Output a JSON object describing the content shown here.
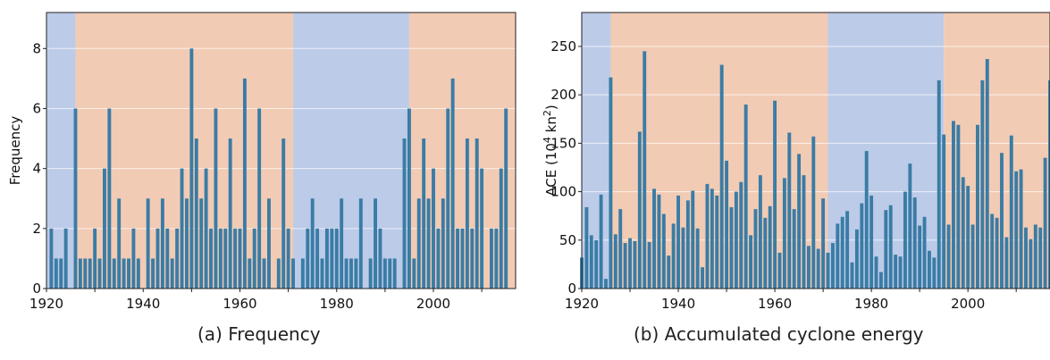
{
  "chart_data": [
    {
      "type": "bar",
      "caption": "(a) Frequency",
      "ylabel": "Frequency",
      "xlim": [
        1920,
        2017
      ],
      "ylim": [
        0,
        9.2
      ],
      "xticks": [
        1920,
        1940,
        1960,
        1980,
        2000
      ],
      "yticks": [
        0,
        2,
        4,
        6,
        8
      ],
      "grid": "y",
      "phases": [
        {
          "start": 1920,
          "end": 1926,
          "phase": "cool",
          "color": "#bccbe8"
        },
        {
          "start": 1926,
          "end": 1971,
          "phase": "warm",
          "color": "#f2cbb4"
        },
        {
          "start": 1971,
          "end": 1995,
          "phase": "cool",
          "color": "#bccbe8"
        },
        {
          "start": 1995,
          "end": 2017,
          "phase": "warm",
          "color": "#f2cbb4"
        }
      ],
      "bar_color": "#3a7ca5",
      "x": [
        1921,
        1922,
        1923,
        1924,
        1925,
        1926,
        1927,
        1928,
        1929,
        1930,
        1931,
        1932,
        1933,
        1934,
        1935,
        1936,
        1937,
        1938,
        1939,
        1940,
        1941,
        1942,
        1943,
        1944,
        1945,
        1946,
        1947,
        1948,
        1949,
        1950,
        1951,
        1952,
        1953,
        1954,
        1955,
        1956,
        1957,
        1958,
        1959,
        1960,
        1961,
        1962,
        1963,
        1964,
        1965,
        1966,
        1967,
        1968,
        1969,
        1970,
        1971,
        1972,
        1973,
        1974,
        1975,
        1976,
        1977,
        1978,
        1979,
        1980,
        1981,
        1982,
        1983,
        1984,
        1985,
        1986,
        1987,
        1988,
        1989,
        1990,
        1991,
        1992,
        1993,
        1994,
        1995,
        1996,
        1997,
        1998,
        1999,
        2000,
        2001,
        2002,
        2003,
        2004,
        2005,
        2006,
        2007,
        2008,
        2009,
        2010,
        2011,
        2012,
        2013,
        2014,
        2015,
        2016,
        2017
      ],
      "values": [
        2,
        1,
        1,
        2,
        0,
        6,
        1,
        1,
        1,
        2,
        1,
        4,
        6,
        1,
        3,
        1,
        1,
        2,
        1,
        0,
        3,
        1,
        2,
        3,
        2,
        1,
        2,
        4,
        3,
        8,
        5,
        3,
        4,
        2,
        6,
        2,
        2,
        5,
        2,
        2,
        7,
        1,
        2,
        6,
        1,
        3,
        0,
        1,
        5,
        2,
        1,
        0,
        1,
        2,
        3,
        2,
        1,
        2,
        2,
        2,
        3,
        1,
        1,
        1,
        3,
        0,
        1,
        3,
        2,
        1,
        1,
        1,
        0,
        5,
        6,
        1,
        3,
        5,
        3,
        4,
        2,
        3,
        6,
        7,
        2,
        2,
        5,
        2,
        5,
        4,
        0,
        2,
        2,
        4,
        6,
        0,
        0
      ]
    },
    {
      "type": "bar",
      "caption": "(b) Accumulated cyclone energy",
      "ylabel": "ACE (10⁴ kn²)",
      "xlim": [
        1920,
        2017
      ],
      "ylim": [
        0,
        285
      ],
      "xticks": [
        1920,
        1940,
        1960,
        1980,
        2000
      ],
      "yticks": [
        0,
        50,
        100,
        150,
        200,
        250
      ],
      "grid": "y",
      "phases": [
        {
          "start": 1920,
          "end": 1926,
          "phase": "cool",
          "color": "#bccbe8"
        },
        {
          "start": 1926,
          "end": 1971,
          "phase": "warm",
          "color": "#f2cbb4"
        },
        {
          "start": 1971,
          "end": 1995,
          "phase": "cool",
          "color": "#bccbe8"
        },
        {
          "start": 1995,
          "end": 2017,
          "phase": "warm",
          "color": "#f2cbb4"
        }
      ],
      "bar_color": "#3a7ca5",
      "x": [
        1920,
        1921,
        1922,
        1923,
        1924,
        1925,
        1926,
        1927,
        1928,
        1929,
        1930,
        1931,
        1932,
        1933,
        1934,
        1935,
        1936,
        1937,
        1938,
        1939,
        1940,
        1941,
        1942,
        1943,
        1944,
        1945,
        1946,
        1947,
        1948,
        1949,
        1950,
        1951,
        1952,
        1953,
        1954,
        1955,
        1956,
        1957,
        1958,
        1959,
        1960,
        1961,
        1962,
        1963,
        1964,
        1965,
        1966,
        1967,
        1968,
        1969,
        1970,
        1971,
        1972,
        1973,
        1974,
        1975,
        1976,
        1977,
        1978,
        1979,
        1980,
        1981,
        1982,
        1983,
        1984,
        1985,
        1986,
        1987,
        1988,
        1989,
        1990,
        1991,
        1992,
        1993,
        1994,
        1995,
        1996,
        1997,
        1998,
        1999,
        2000,
        2001,
        2002,
        2003,
        2004,
        2005,
        2006,
        2007,
        2008,
        2009,
        2010,
        2011,
        2012,
        2013,
        2014,
        2015,
        2016,
        2017
      ],
      "values": [
        32,
        84,
        55,
        50,
        97,
        10,
        218,
        56,
        82,
        47,
        52,
        49,
        162,
        245,
        48,
        103,
        97,
        77,
        34,
        67,
        96,
        63,
        91,
        101,
        62,
        22,
        108,
        103,
        96,
        231,
        132,
        84,
        100,
        110,
        190,
        55,
        82,
        117,
        73,
        85,
        194,
        37,
        114,
        161,
        82,
        139,
        117,
        44,
        157,
        41,
        93,
        37,
        47,
        67,
        74,
        80,
        27,
        61,
        88,
        142,
        96,
        33,
        17,
        81,
        86,
        35,
        33,
        100,
        129,
        94,
        65,
        74,
        39,
        32,
        215,
        159,
        66,
        173,
        169,
        115,
        106,
        66,
        169,
        215,
        237,
        77,
        73,
        140,
        53,
        158,
        121,
        123,
        63,
        51,
        66,
        63,
        135,
        215
      ]
    }
  ]
}
